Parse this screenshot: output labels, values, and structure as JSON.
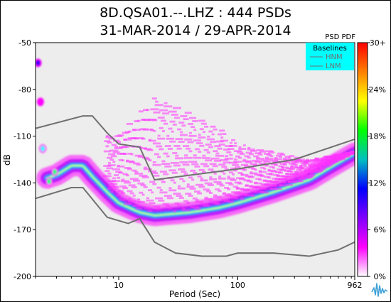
{
  "chart_data": {
    "type": "heatmap",
    "title_line1": "8D.QSA01.--.LHZ : 444 PSDs",
    "title_line2": "31-MAR-2014 / 29-APR-2014",
    "xlabel": "Period (Sec)",
    "ylabel": "dB",
    "x_scale": "log",
    "xlim": [
      2,
      962
    ],
    "ylim": [
      -200,
      -50
    ],
    "x_ticks": [
      {
        "value": 10,
        "label": "10"
      },
      {
        "value": 100,
        "label": "100"
      },
      {
        "value": 962,
        "label": "962"
      }
    ],
    "y_ticks": [
      {
        "value": -50,
        "label": "-50"
      },
      {
        "value": -80,
        "label": "-80"
      },
      {
        "value": -110,
        "label": "-110"
      },
      {
        "value": -140,
        "label": "-140"
      },
      {
        "value": -170,
        "label": "-170"
      },
      {
        "value": -200,
        "label": "-200"
      }
    ],
    "legend": {
      "title": "Baselines",
      "entries": [
        "HNM",
        "LNM"
      ],
      "placement": "top-right",
      "background": "#00ffff"
    },
    "colorbar": {
      "title": "PSD PDF",
      "ticks": [
        "30+",
        "24%",
        "18%",
        "12%",
        "6%",
        "0%"
      ],
      "stops": [
        "#ff0000",
        "#ff8000",
        "#ffff00",
        "#00ff00",
        "#00c0c0",
        "#0000ff",
        "#8000ff",
        "#ff00ff",
        "#ffffff"
      ]
    },
    "hnm_series": {
      "name": "HNM",
      "points": [
        [
          2,
          -105
        ],
        [
          5,
          -97
        ],
        [
          6,
          -97
        ],
        [
          8,
          -108
        ],
        [
          10,
          -115
        ],
        [
          15,
          -117
        ],
        [
          20,
          -138
        ],
        [
          100,
          -131
        ],
        [
          300,
          -125
        ],
        [
          962,
          -112
        ]
      ]
    },
    "lnm_series": {
      "name": "LNM",
      "points": [
        [
          2,
          -150
        ],
        [
          4,
          -143
        ],
        [
          5,
          -143
        ],
        [
          8,
          -162
        ],
        [
          12,
          -166
        ],
        [
          15,
          -163
        ],
        [
          20,
          -178
        ],
        [
          30,
          -185
        ],
        [
          50,
          -187
        ],
        [
          80,
          -187
        ],
        [
          100,
          -185
        ],
        [
          200,
          -185
        ],
        [
          400,
          -187
        ],
        [
          700,
          -183
        ],
        [
          962,
          -178
        ]
      ]
    },
    "density_trend": {
      "points": [
        [
          2.5,
          -136
        ],
        [
          3,
          -134
        ],
        [
          4,
          -128
        ],
        [
          5,
          -128
        ],
        [
          6,
          -135
        ],
        [
          8,
          -145
        ],
        [
          10,
          -152
        ],
        [
          15,
          -158
        ],
        [
          20,
          -160
        ],
        [
          40,
          -158
        ],
        [
          70,
          -155
        ],
        [
          100,
          -152
        ],
        [
          200,
          -145
        ],
        [
          400,
          -137
        ],
        [
          700,
          -126
        ],
        [
          962,
          -120
        ]
      ]
    },
    "density_cloud": {
      "points": [
        [
          10,
          -110
        ],
        [
          15,
          -95
        ],
        [
          20,
          -85
        ],
        [
          40,
          -95
        ],
        [
          70,
          -105
        ],
        [
          100,
          -115
        ],
        [
          200,
          -120
        ],
        [
          400,
          -125
        ],
        [
          962,
          -120
        ]
      ]
    },
    "plot_background": "#ededed",
    "noise_model_color": "#707070"
  },
  "icons": {
    "logo": "iris-waveform-icon"
  }
}
